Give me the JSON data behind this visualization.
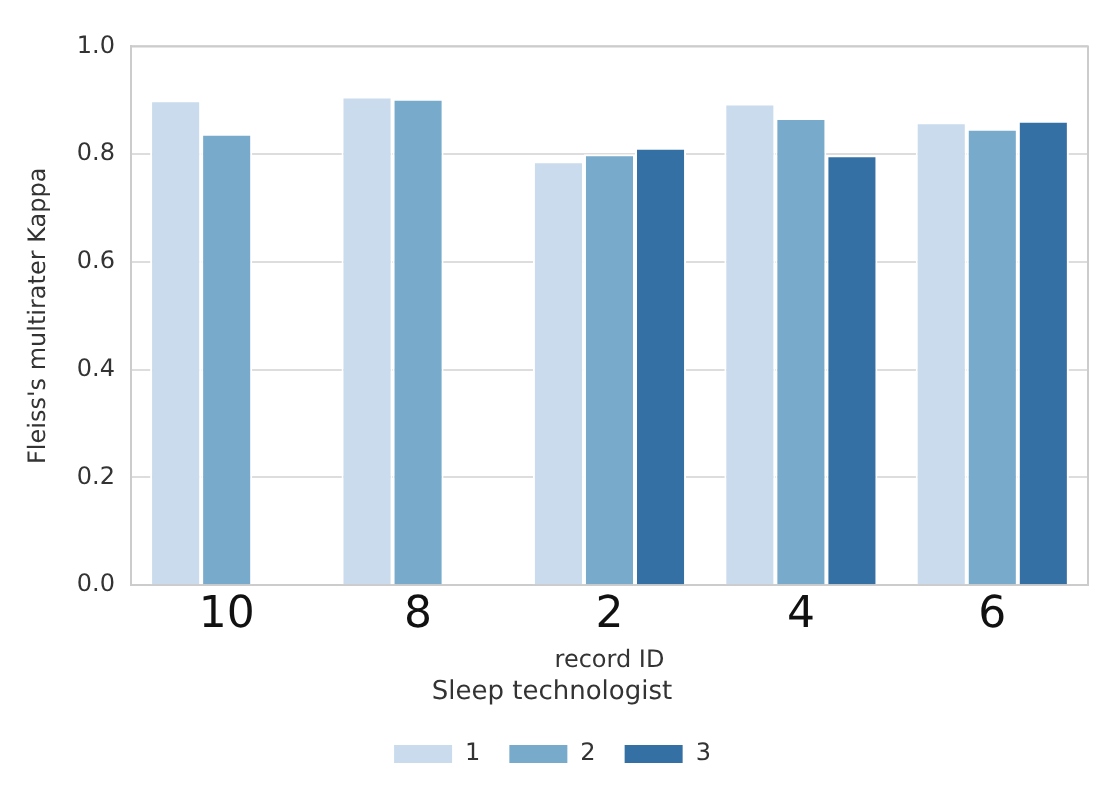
{
  "chart_data": {
    "type": "bar",
    "xlabel": "record ID",
    "ylabel": "Fleiss's multirater Kappa",
    "legend_title": "Sleep technologist",
    "categories": [
      "10",
      "8",
      "2",
      "4",
      "6"
    ],
    "series": [
      {
        "name": "1",
        "color": "#c9dbec",
        "values": [
          0.9,
          0.907,
          0.787,
          0.894,
          0.859
        ]
      },
      {
        "name": "2",
        "color": "#77aacb",
        "values": [
          0.838,
          0.903,
          0.8,
          0.867,
          0.847
        ]
      },
      {
        "name": "3",
        "color": "#3470a3",
        "values": [
          null,
          null,
          0.812,
          0.798,
          0.862
        ]
      }
    ],
    "ylim": [
      0,
      1
    ],
    "yticks": [
      {
        "value": 0,
        "label": "0.0"
      },
      {
        "value": 0.2,
        "label": "0.2"
      },
      {
        "value": 0.4,
        "label": "0.4"
      },
      {
        "value": 0.6,
        "label": "0.6"
      },
      {
        "value": 0.8,
        "label": "0.8"
      },
      {
        "value": 1,
        "label": "1.0"
      }
    ],
    "grid": "y",
    "legend": "bottom"
  }
}
